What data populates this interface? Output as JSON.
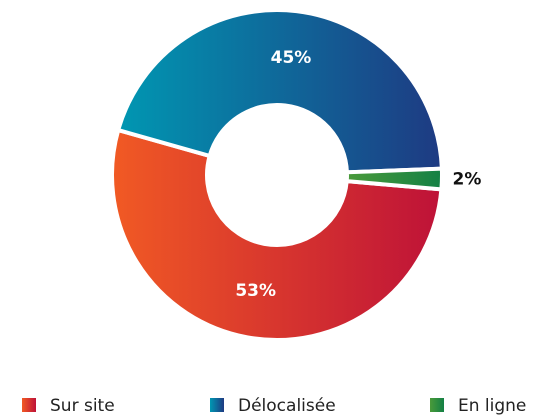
{
  "chart_data": {
    "type": "donut",
    "categories": [
      "Sur site",
      "Délocalisée",
      "En ligne"
    ],
    "values": [
      53,
      45,
      2
    ],
    "value_labels": [
      "53%",
      "45%",
      "2%"
    ],
    "colors": [
      [
        "#f15a24",
        "#be1238"
      ],
      [
        "#0097b2",
        "#1e3a82"
      ],
      [
        "#4a9a3a",
        "#138045"
      ]
    ],
    "legend": "bottom"
  }
}
